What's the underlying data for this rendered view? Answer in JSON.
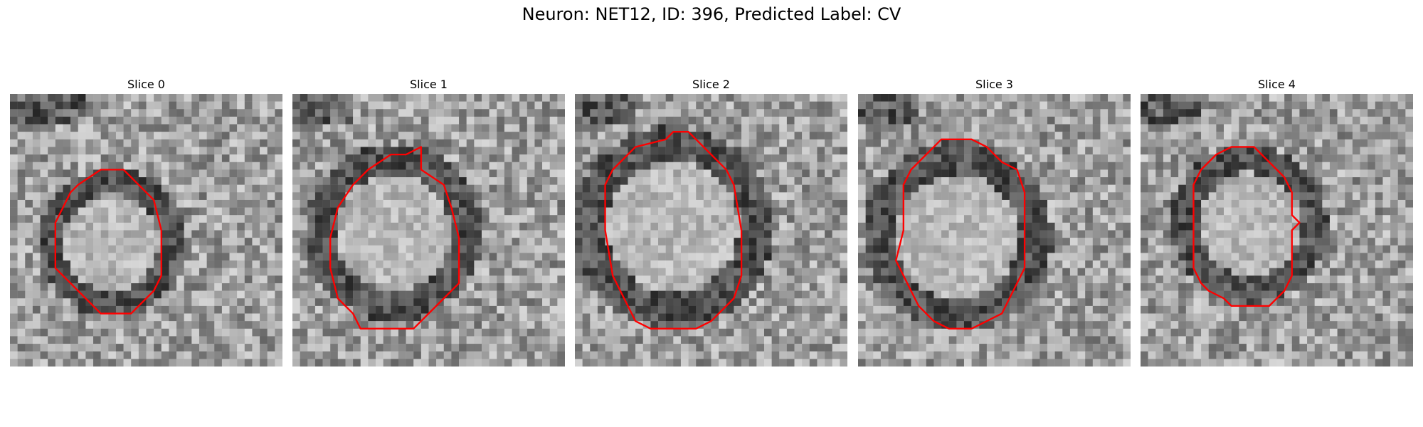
{
  "figure": {
    "title": "Neuron: NET12, ID: 396, Predicted Label: CV"
  },
  "panels": [
    {
      "title": "Slice 0",
      "image": "grayscale-em-patch",
      "overlay": "red-contour",
      "contour": [
        [
          15,
          10
        ],
        [
          12,
          10
        ],
        [
          9,
          12
        ],
        [
          8,
          13
        ],
        [
          6,
          17
        ],
        [
          6,
          23
        ],
        [
          8,
          25
        ],
        [
          9,
          26
        ],
        [
          12,
          29
        ],
        [
          16,
          29
        ],
        [
          18,
          27
        ],
        [
          19,
          26
        ],
        [
          20,
          24
        ],
        [
          20,
          18
        ],
        [
          19,
          14
        ],
        [
          17,
          12
        ]
      ]
    },
    {
      "title": "Slice 1",
      "image": "grayscale-em-patch",
      "overlay": "red-contour",
      "contour": [
        [
          17,
          7
        ],
        [
          15,
          8
        ],
        [
          13,
          8
        ],
        [
          10,
          10
        ],
        [
          8,
          12
        ],
        [
          6,
          15
        ],
        [
          5,
          19
        ],
        [
          5,
          23
        ],
        [
          6,
          27
        ],
        [
          8,
          29
        ],
        [
          9,
          31
        ],
        [
          16,
          31
        ],
        [
          19,
          28
        ],
        [
          22,
          25
        ],
        [
          22,
          19
        ],
        [
          21,
          15
        ],
        [
          20,
          12
        ],
        [
          17,
          10
        ]
      ]
    },
    {
      "title": "Slice 2",
      "image": "grayscale-em-patch",
      "overlay": "red-contour",
      "contour": [
        [
          13,
          5
        ],
        [
          12,
          6
        ],
        [
          8,
          7
        ],
        [
          7,
          8
        ],
        [
          5,
          10
        ],
        [
          4,
          12
        ],
        [
          4,
          18
        ],
        [
          5,
          24
        ],
        [
          6,
          26
        ],
        [
          7,
          28
        ],
        [
          8,
          30
        ],
        [
          10,
          31
        ],
        [
          16,
          31
        ],
        [
          18,
          30
        ],
        [
          19,
          29
        ],
        [
          21,
          27
        ],
        [
          22,
          24
        ],
        [
          22,
          18
        ],
        [
          21,
          12
        ],
        [
          20,
          10
        ],
        [
          18,
          8
        ],
        [
          16,
          6
        ],
        [
          15,
          5
        ]
      ]
    },
    {
      "title": "Slice 3",
      "image": "grayscale-em-patch",
      "overlay": "red-contour",
      "contour": [
        [
          15,
          6
        ],
        [
          11,
          6
        ],
        [
          9,
          8
        ],
        [
          8,
          9
        ],
        [
          7,
          10
        ],
        [
          6,
          12
        ],
        [
          6,
          18
        ],
        [
          5,
          22
        ],
        [
          6,
          24
        ],
        [
          7,
          26
        ],
        [
          8,
          28
        ],
        [
          10,
          30
        ],
        [
          12,
          31
        ],
        [
          15,
          31
        ],
        [
          17,
          30
        ],
        [
          19,
          29
        ],
        [
          20,
          27
        ],
        [
          21,
          25
        ],
        [
          22,
          23
        ],
        [
          22,
          13
        ],
        [
          21,
          10
        ],
        [
          19,
          9
        ],
        [
          17,
          7
        ]
      ]
    },
    {
      "title": "Slice 4",
      "image": "grayscale-em-patch",
      "overlay": "red-contour",
      "contour": [
        [
          15,
          7
        ],
        [
          12,
          7
        ],
        [
          10,
          8
        ],
        [
          8,
          10
        ],
        [
          7,
          12
        ],
        [
          7,
          23
        ],
        [
          8,
          25
        ],
        [
          9,
          26
        ],
        [
          11,
          27
        ],
        [
          12,
          28
        ],
        [
          17,
          28
        ],
        [
          19,
          26
        ],
        [
          20,
          24
        ],
        [
          20,
          18
        ],
        [
          21,
          17
        ],
        [
          20,
          16
        ],
        [
          20,
          13
        ],
        [
          19,
          11
        ],
        [
          18,
          10
        ],
        [
          16,
          8
        ]
      ]
    }
  ],
  "colors": {
    "contour": "#ff0000"
  }
}
